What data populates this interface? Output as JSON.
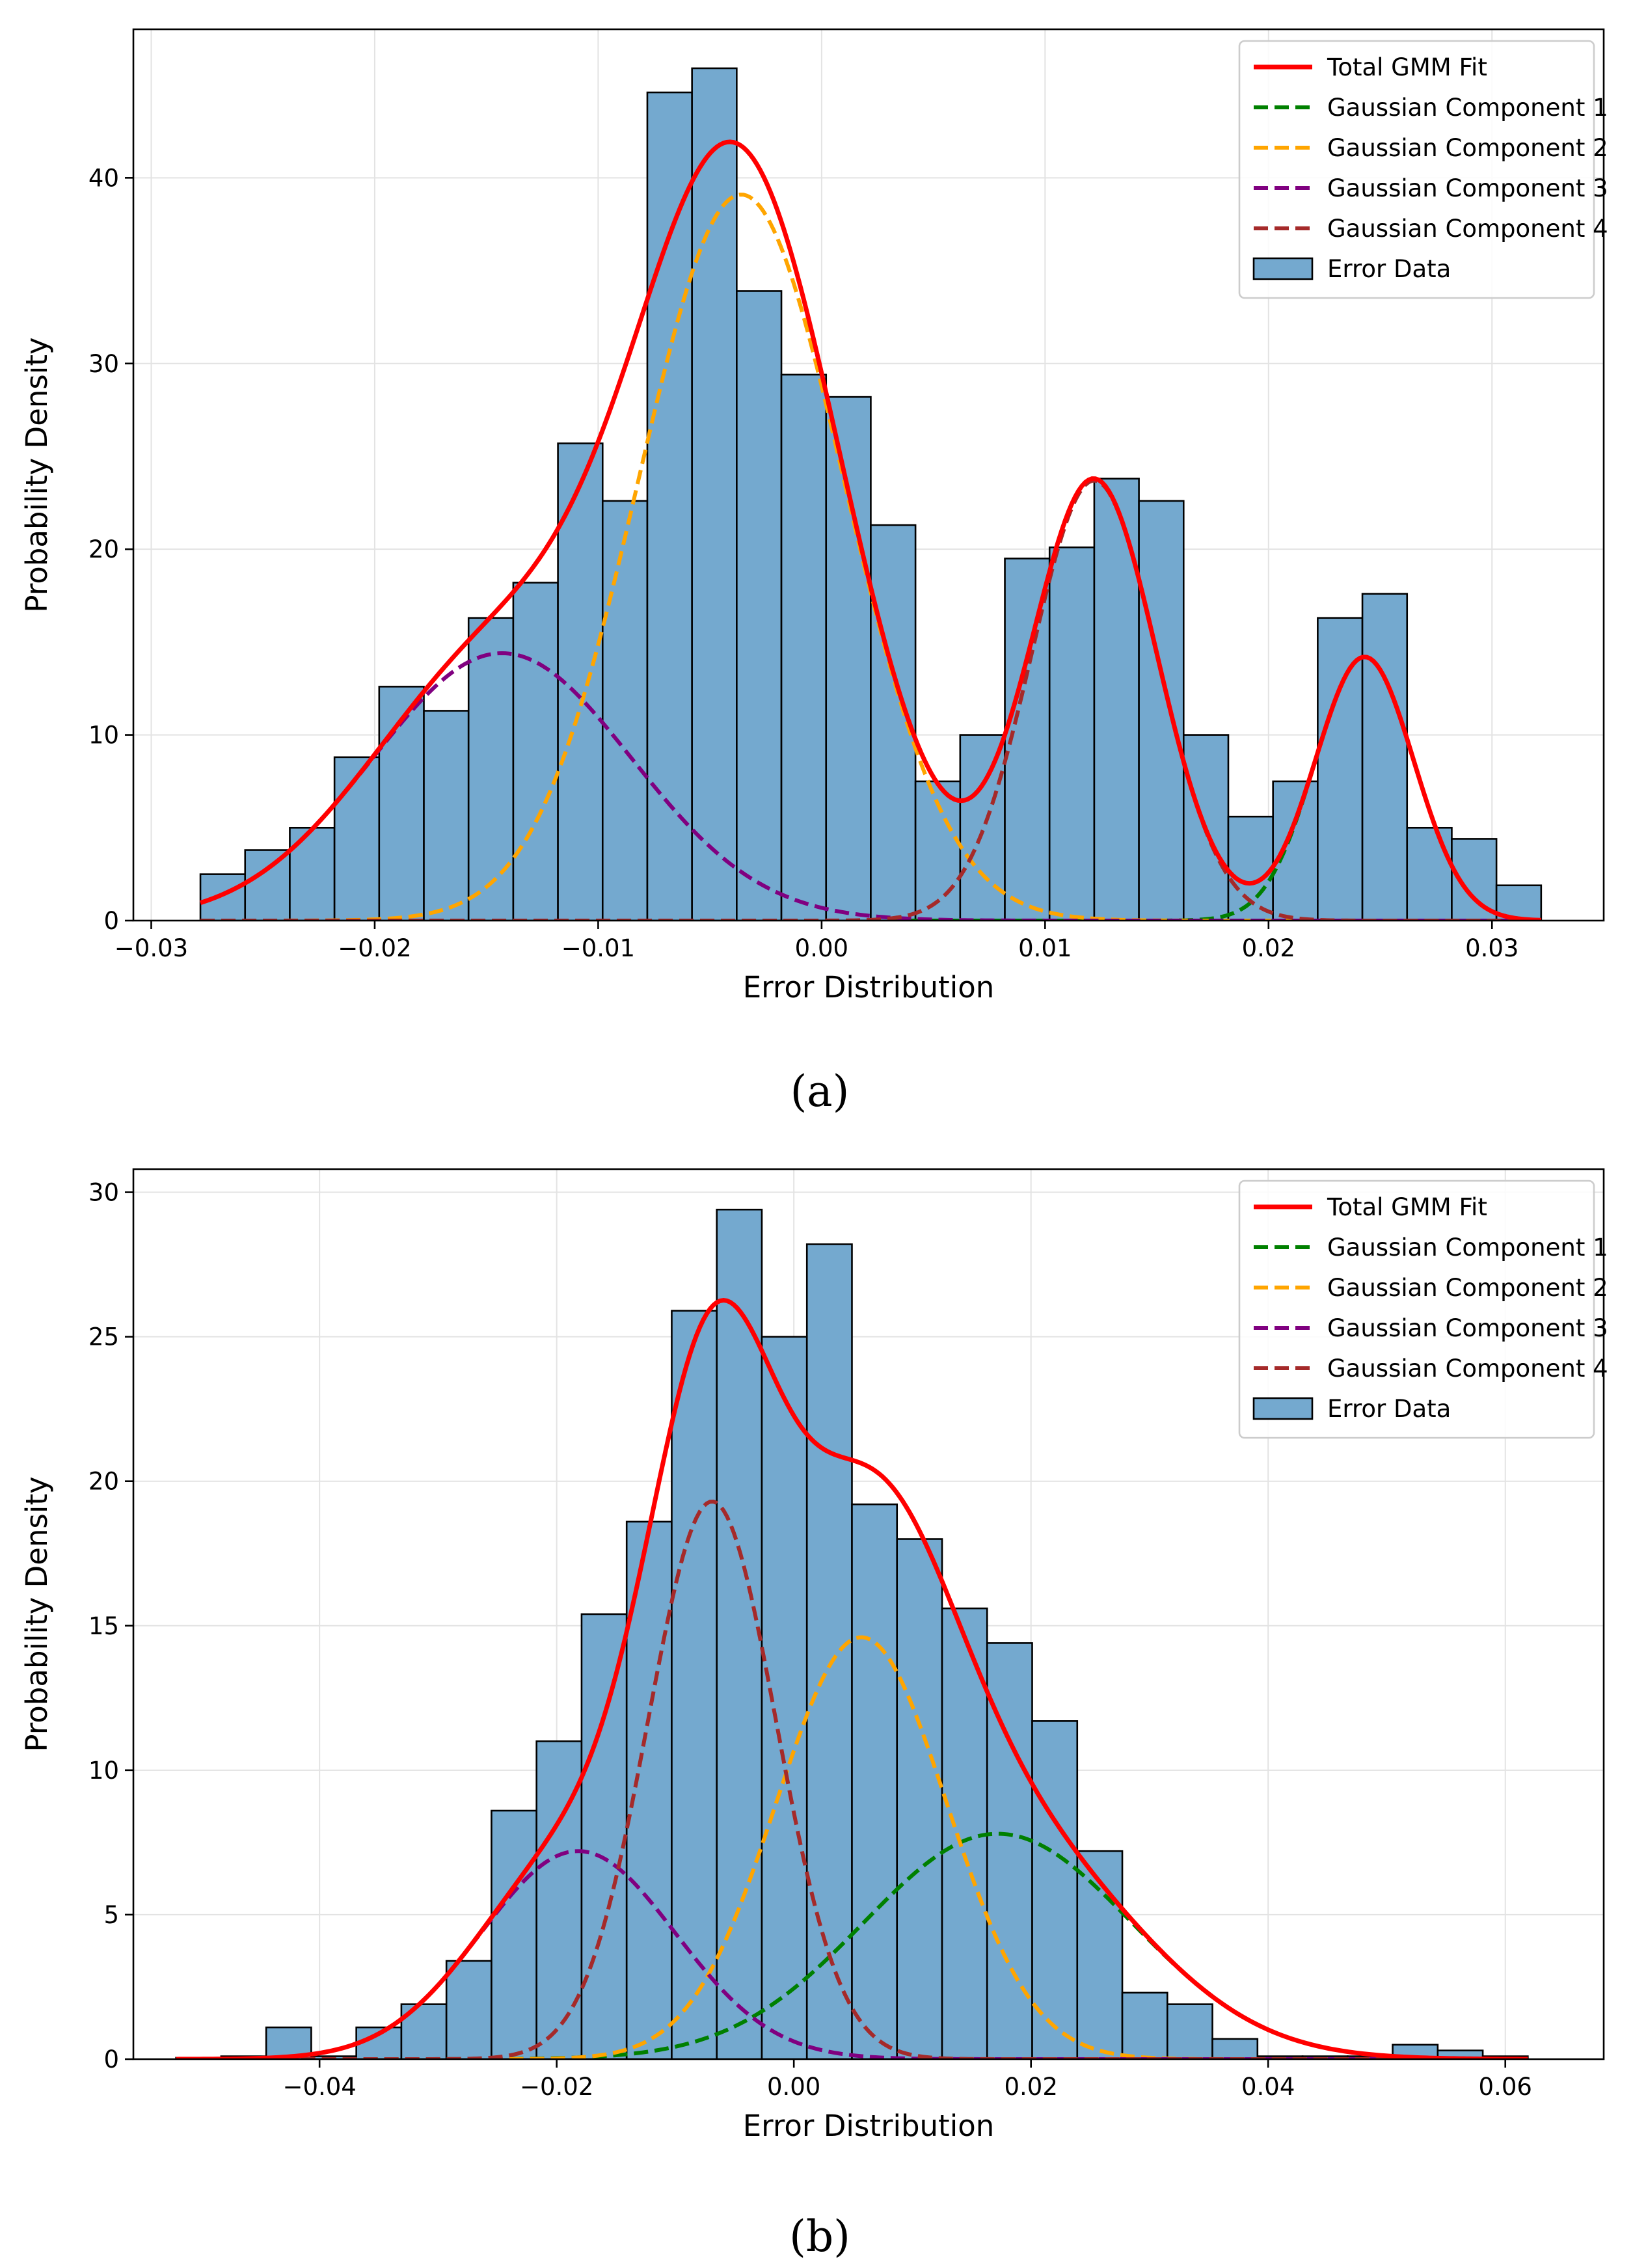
{
  "chart_data": [
    {
      "type": "bar",
      "panel_label": "(a)",
      "xlabel": "Error Distribution",
      "ylabel": "Probability Density",
      "xlim": [
        -0.0308,
        0.035
      ],
      "ylim": [
        0,
        48
      ],
      "xticks": [
        -0.03,
        -0.02,
        -0.01,
        0.0,
        0.01,
        0.02,
        0.03
      ],
      "xtick_labels": [
        "−0.03",
        "−0.02",
        "−0.01",
        "0.00",
        "0.01",
        "0.02",
        "0.03"
      ],
      "yticks": [
        0,
        10,
        20,
        30,
        40
      ],
      "ytick_labels": [
        "0",
        "10",
        "20",
        "30",
        "40"
      ],
      "grid": true,
      "legend_position": "top-right",
      "histogram": {
        "name": "Error Data",
        "color": "#74a9cf",
        "bin_start": -0.0278,
        "bin_width": 0.002,
        "values": [
          2.5,
          3.8,
          5.0,
          8.8,
          12.6,
          11.3,
          16.3,
          18.2,
          25.7,
          22.6,
          44.6,
          45.9,
          33.9,
          29.4,
          28.2,
          21.3,
          7.5,
          10.0,
          19.5,
          20.1,
          23.8,
          22.6,
          10.0,
          5.6,
          7.5,
          16.3,
          17.6,
          5.0,
          4.4,
          1.9
        ]
      },
      "series": [
        {
          "name": "Total GMM Fit",
          "color": "#ff0000",
          "style": "solid"
        },
        {
          "name": "Gaussian Component 1",
          "color": "#008000",
          "style": "dashed",
          "mean": 0.0243,
          "sd": 0.0022,
          "peak": 14.2
        },
        {
          "name": "Gaussian Component 2",
          "color": "#ffa500",
          "style": "dashed",
          "mean": -0.0036,
          "sd": 0.0046,
          "peak": 39.1
        },
        {
          "name": "Gaussian Component 3",
          "color": "#800080",
          "style": "dashed",
          "mean": -0.0143,
          "sd": 0.0058,
          "peak": 14.4
        },
        {
          "name": "Gaussian Component 4",
          "color": "#a52a2a",
          "style": "dashed",
          "mean": 0.0122,
          "sd": 0.0028,
          "peak": 23.7
        }
      ],
      "curve_range": [
        -0.0278,
        0.0322
      ]
    },
    {
      "type": "bar",
      "panel_label": "(b)",
      "xlabel": "Error Distribution",
      "ylabel": "Probability Density",
      "xlim": [
        -0.0557,
        0.0683
      ],
      "ylim": [
        0,
        30.8
      ],
      "xticks": [
        -0.04,
        -0.02,
        0.0,
        0.02,
        0.04,
        0.06
      ],
      "xtick_labels": [
        "−0.04",
        "−0.02",
        "0.00",
        "0.02",
        "0.04",
        "0.06"
      ],
      "yticks": [
        0,
        5,
        10,
        15,
        20,
        25,
        30
      ],
      "ytick_labels": [
        "0",
        "5",
        "10",
        "15",
        "20",
        "25",
        "30"
      ],
      "grid": true,
      "legend_position": "top-right",
      "histogram": {
        "name": "Error Data",
        "color": "#74a9cf",
        "bin_start": -0.0521,
        "bin_width": 0.0038,
        "values": [
          0.05,
          0.1,
          1.1,
          0.1,
          1.1,
          1.9,
          3.4,
          8.6,
          11.0,
          15.4,
          18.6,
          25.9,
          29.4,
          25.0,
          28.2,
          19.2,
          18.0,
          15.6,
          14.4,
          11.7,
          7.2,
          2.3,
          1.9,
          0.7,
          0.1,
          0.1,
          0.1,
          0.5,
          0.3,
          0.1
        ]
      },
      "series": [
        {
          "name": "Total GMM Fit",
          "color": "#ff0000",
          "style": "solid"
        },
        {
          "name": "Gaussian Component 1",
          "color": "#008000",
          "style": "dashed",
          "mean": 0.0172,
          "sd": 0.0113,
          "peak": 7.8
        },
        {
          "name": "Gaussian Component 2",
          "color": "#ffa500",
          "style": "dashed",
          "mean": 0.0057,
          "sd": 0.0072,
          "peak": 14.6
        },
        {
          "name": "Gaussian Component 3",
          "color": "#800080",
          "style": "dashed",
          "mean": -0.0182,
          "sd": 0.0082,
          "peak": 7.2
        },
        {
          "name": "Gaussian Component 4",
          "color": "#a52a2a",
          "style": "dashed",
          "mean": -0.0069,
          "sd": 0.0054,
          "peak": 19.3
        }
      ],
      "curve_range": [
        -0.0521,
        0.0619
      ]
    }
  ]
}
